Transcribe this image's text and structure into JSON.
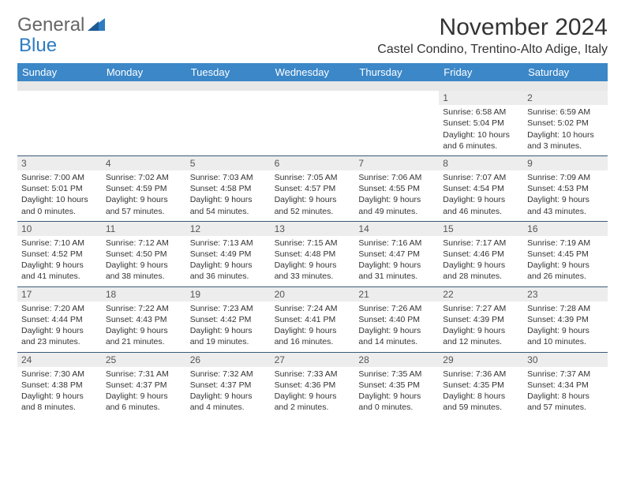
{
  "logo": {
    "part1": "General",
    "part2": "Blue"
  },
  "title": "November 2024",
  "location": "Castel Condino, Trentino-Alto Adige, Italy",
  "colors": {
    "header_bg": "#3b87c8",
    "header_fg": "#ffffff",
    "row_divider": "#3b5a78",
    "daynum_bg": "#ededed",
    "text": "#333333",
    "logo_accent": "#2d7cc1"
  },
  "day_names": [
    "Sunday",
    "Monday",
    "Tuesday",
    "Wednesday",
    "Thursday",
    "Friday",
    "Saturday"
  ],
  "weeks": [
    [
      {
        "day": null
      },
      {
        "day": null
      },
      {
        "day": null
      },
      {
        "day": null
      },
      {
        "day": null
      },
      {
        "day": 1,
        "sunrise": "Sunrise: 6:58 AM",
        "sunset": "Sunset: 5:04 PM",
        "daylight": "Daylight: 10 hours and 6 minutes."
      },
      {
        "day": 2,
        "sunrise": "Sunrise: 6:59 AM",
        "sunset": "Sunset: 5:02 PM",
        "daylight": "Daylight: 10 hours and 3 minutes."
      }
    ],
    [
      {
        "day": 3,
        "sunrise": "Sunrise: 7:00 AM",
        "sunset": "Sunset: 5:01 PM",
        "daylight": "Daylight: 10 hours and 0 minutes."
      },
      {
        "day": 4,
        "sunrise": "Sunrise: 7:02 AM",
        "sunset": "Sunset: 4:59 PM",
        "daylight": "Daylight: 9 hours and 57 minutes."
      },
      {
        "day": 5,
        "sunrise": "Sunrise: 7:03 AM",
        "sunset": "Sunset: 4:58 PM",
        "daylight": "Daylight: 9 hours and 54 minutes."
      },
      {
        "day": 6,
        "sunrise": "Sunrise: 7:05 AM",
        "sunset": "Sunset: 4:57 PM",
        "daylight": "Daylight: 9 hours and 52 minutes."
      },
      {
        "day": 7,
        "sunrise": "Sunrise: 7:06 AM",
        "sunset": "Sunset: 4:55 PM",
        "daylight": "Daylight: 9 hours and 49 minutes."
      },
      {
        "day": 8,
        "sunrise": "Sunrise: 7:07 AM",
        "sunset": "Sunset: 4:54 PM",
        "daylight": "Daylight: 9 hours and 46 minutes."
      },
      {
        "day": 9,
        "sunrise": "Sunrise: 7:09 AM",
        "sunset": "Sunset: 4:53 PM",
        "daylight": "Daylight: 9 hours and 43 minutes."
      }
    ],
    [
      {
        "day": 10,
        "sunrise": "Sunrise: 7:10 AM",
        "sunset": "Sunset: 4:52 PM",
        "daylight": "Daylight: 9 hours and 41 minutes."
      },
      {
        "day": 11,
        "sunrise": "Sunrise: 7:12 AM",
        "sunset": "Sunset: 4:50 PM",
        "daylight": "Daylight: 9 hours and 38 minutes."
      },
      {
        "day": 12,
        "sunrise": "Sunrise: 7:13 AM",
        "sunset": "Sunset: 4:49 PM",
        "daylight": "Daylight: 9 hours and 36 minutes."
      },
      {
        "day": 13,
        "sunrise": "Sunrise: 7:15 AM",
        "sunset": "Sunset: 4:48 PM",
        "daylight": "Daylight: 9 hours and 33 minutes."
      },
      {
        "day": 14,
        "sunrise": "Sunrise: 7:16 AM",
        "sunset": "Sunset: 4:47 PM",
        "daylight": "Daylight: 9 hours and 31 minutes."
      },
      {
        "day": 15,
        "sunrise": "Sunrise: 7:17 AM",
        "sunset": "Sunset: 4:46 PM",
        "daylight": "Daylight: 9 hours and 28 minutes."
      },
      {
        "day": 16,
        "sunrise": "Sunrise: 7:19 AM",
        "sunset": "Sunset: 4:45 PM",
        "daylight": "Daylight: 9 hours and 26 minutes."
      }
    ],
    [
      {
        "day": 17,
        "sunrise": "Sunrise: 7:20 AM",
        "sunset": "Sunset: 4:44 PM",
        "daylight": "Daylight: 9 hours and 23 minutes."
      },
      {
        "day": 18,
        "sunrise": "Sunrise: 7:22 AM",
        "sunset": "Sunset: 4:43 PM",
        "daylight": "Daylight: 9 hours and 21 minutes."
      },
      {
        "day": 19,
        "sunrise": "Sunrise: 7:23 AM",
        "sunset": "Sunset: 4:42 PM",
        "daylight": "Daylight: 9 hours and 19 minutes."
      },
      {
        "day": 20,
        "sunrise": "Sunrise: 7:24 AM",
        "sunset": "Sunset: 4:41 PM",
        "daylight": "Daylight: 9 hours and 16 minutes."
      },
      {
        "day": 21,
        "sunrise": "Sunrise: 7:26 AM",
        "sunset": "Sunset: 4:40 PM",
        "daylight": "Daylight: 9 hours and 14 minutes."
      },
      {
        "day": 22,
        "sunrise": "Sunrise: 7:27 AM",
        "sunset": "Sunset: 4:39 PM",
        "daylight": "Daylight: 9 hours and 12 minutes."
      },
      {
        "day": 23,
        "sunrise": "Sunrise: 7:28 AM",
        "sunset": "Sunset: 4:39 PM",
        "daylight": "Daylight: 9 hours and 10 minutes."
      }
    ],
    [
      {
        "day": 24,
        "sunrise": "Sunrise: 7:30 AM",
        "sunset": "Sunset: 4:38 PM",
        "daylight": "Daylight: 9 hours and 8 minutes."
      },
      {
        "day": 25,
        "sunrise": "Sunrise: 7:31 AM",
        "sunset": "Sunset: 4:37 PM",
        "daylight": "Daylight: 9 hours and 6 minutes."
      },
      {
        "day": 26,
        "sunrise": "Sunrise: 7:32 AM",
        "sunset": "Sunset: 4:37 PM",
        "daylight": "Daylight: 9 hours and 4 minutes."
      },
      {
        "day": 27,
        "sunrise": "Sunrise: 7:33 AM",
        "sunset": "Sunset: 4:36 PM",
        "daylight": "Daylight: 9 hours and 2 minutes."
      },
      {
        "day": 28,
        "sunrise": "Sunrise: 7:35 AM",
        "sunset": "Sunset: 4:35 PM",
        "daylight": "Daylight: 9 hours and 0 minutes."
      },
      {
        "day": 29,
        "sunrise": "Sunrise: 7:36 AM",
        "sunset": "Sunset: 4:35 PM",
        "daylight": "Daylight: 8 hours and 59 minutes."
      },
      {
        "day": 30,
        "sunrise": "Sunrise: 7:37 AM",
        "sunset": "Sunset: 4:34 PM",
        "daylight": "Daylight: 8 hours and 57 minutes."
      }
    ]
  ]
}
